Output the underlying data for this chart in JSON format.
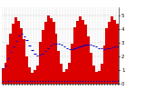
{
  "bar_values": [
    115,
    155,
    290,
    370,
    440,
    490,
    460,
    410,
    330,
    200,
    120,
    80,
    100,
    135,
    305,
    395,
    455,
    500,
    480,
    455,
    365,
    240,
    145,
    90,
    108,
    155,
    295,
    415,
    460,
    495,
    470,
    435,
    350,
    225,
    135,
    88,
    95,
    145,
    280,
    410,
    455,
    495,
    465,
    440
  ],
  "running_avg": [
    115,
    135,
    187,
    233,
    274,
    312,
    354,
    364,
    346,
    317,
    279,
    247,
    222,
    210,
    211,
    221,
    237,
    258,
    277,
    291,
    294,
    291,
    284,
    272,
    262,
    255,
    251,
    258,
    265,
    274,
    280,
    286,
    287,
    284,
    279,
    272,
    263,
    257,
    251,
    258,
    262,
    268,
    272,
    276
  ],
  "monthly_avg": [
    106,
    145,
    297,
    397,
    450,
    495,
    472,
    440,
    348,
    222,
    133,
    86,
    106,
    145,
    297,
    397,
    450,
    495,
    472,
    440,
    348,
    222,
    133,
    86,
    106,
    145,
    297,
    397,
    450,
    495,
    472,
    440,
    348,
    222,
    133,
    86,
    106,
    145,
    297,
    397,
    450,
    495,
    472,
    440
  ],
  "bar_color": "#dd0000",
  "avg_color": "#0000cc",
  "background_color": "#ffffff",
  "grid_color": "#aaaaaa",
  "ylim": [
    0,
    560
  ],
  "yticks": [
    0,
    100,
    200,
    300,
    400,
    500
  ],
  "ytick_labels": [
    "0",
    "1",
    "2",
    "3",
    "4",
    "5"
  ],
  "ylabel_fontsize": 4.0,
  "xlabel_fontsize": 3.0
}
